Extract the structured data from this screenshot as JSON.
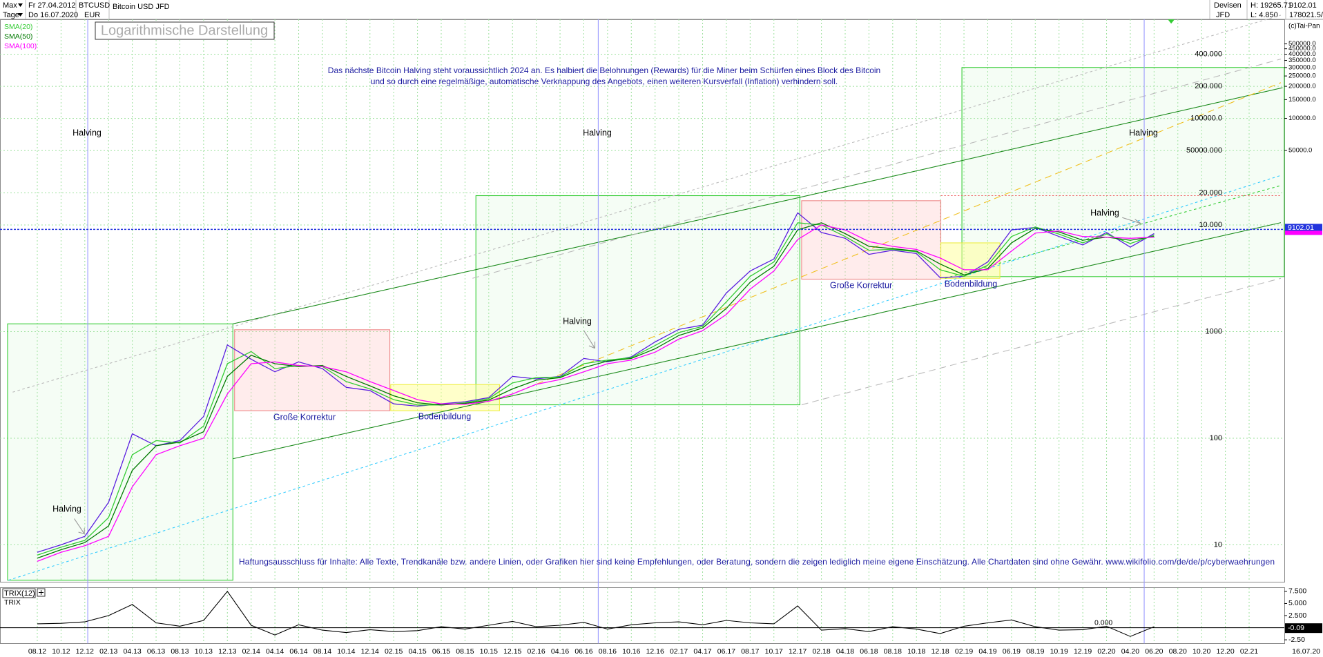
{
  "header": {
    "period": "Max",
    "from": "Fr 27.04.2012",
    "interval": "Tage",
    "to": "Do 16.07.2020",
    "symbol": "BTCUSD",
    "currency": "EUR",
    "name": "Bitcoin USD JFD",
    "market": "Devisen",
    "broker": "JFD",
    "high": "H: 19265.71",
    "low": "L: 4.850",
    "last": 9102.01,
    "extra": "178021.5/",
    "copyright": "(c)Tai-Pan"
  },
  "chart_data": [
    {
      "type": "line",
      "title": "Logarithmische Darstellung",
      "notes": [
        "Das nächste Bitcoin Halving steht voraussichtlich 2024 an. Es halbiert die Belohnungen (Rewards) für die Miner beim Schürfen eines Block des Bitcoin",
        "und so durch eine regelmäßige, automatische Verknappung des Angebots, einen weiteren Kursverfall (Inflation) verhindern soll."
      ],
      "annotations": [
        "Halving",
        "Halving",
        "Halving",
        "Halving",
        "Halving",
        "Halving",
        "Große Korrektur",
        "Große Korrektur",
        "Bodenbildung",
        "Bodenbildung"
      ],
      "disclaimer": "Haftungsausschluss für Inhalte: Alle Texte, Trendkanäle bzw. andere Linien, oder Grafiken hier sind keine Empfehlungen, oder Beratung, sondern die zeigen lediglich meine eigene Einschätzung. Alle Chartdaten sind ohne Gewähr.  www.wikifolio.com/de/de/p/cyberwaehrungen",
      "categories": [
        "08.12",
        "10.12",
        "12.12",
        "02.13",
        "04.13",
        "06.13",
        "08.13",
        "10.13",
        "12.13",
        "02.14",
        "04.14",
        "06.14",
        "08.14",
        "10.14",
        "12.14",
        "02.15",
        "04.15",
        "06.15",
        "08.15",
        "10.15",
        "12.15",
        "02.16",
        "04.16",
        "06.16",
        "08.16",
        "10.16",
        "12.16",
        "02.17",
        "04.17",
        "06.17",
        "08.17",
        "10.17",
        "12.17",
        "02.18",
        "04.18",
        "06.18",
        "08.18",
        "10.18",
        "12.18",
        "02.19",
        "04.19",
        "06.19",
        "08.19",
        "10.19",
        "12.19",
        "02.20",
        "04.20",
        "06.20",
        "08.20",
        "10.20",
        "12.20",
        "02.21"
      ],
      "x_end_label": "16.07.20",
      "series": [
        {
          "color": "#5a1ee0",
          "values": [
            8.5,
            10,
            12,
            25,
            110,
            85,
            95,
            160,
            750,
            550,
            420,
            520,
            450,
            300,
            280,
            210,
            200,
            210,
            220,
            240,
            380,
            360,
            380,
            560,
            520,
            580,
            800,
            1050,
            1150,
            2300,
            3700,
            4800,
            13000,
            8500,
            7500,
            5300,
            5800,
            5400,
            3200,
            3300,
            4500,
            9000,
            9500,
            7800,
            6500,
            8500,
            6200,
            8300,
            null,
            null,
            null,
            null
          ]
        },
        {
          "name": "SMA(20)",
          "color": "#33cc33",
          "values": [
            8,
            9.5,
            11,
            18,
            70,
            95,
            90,
            130,
            500,
            650,
            450,
            480,
            470,
            340,
            290,
            230,
            205,
            205,
            215,
            235,
            330,
            370,
            375,
            500,
            540,
            570,
            740,
            980,
            1120,
            1900,
            3300,
            4500,
            10500,
            10000,
            7800,
            5800,
            5900,
            5600,
            3800,
            3300,
            4200,
            7800,
            9600,
            8200,
            6800,
            8200,
            6700,
            8000,
            null,
            null,
            null,
            null
          ]
        },
        {
          "name": "SMA(50)",
          "color": "#007a00",
          "values": [
            7.5,
            9,
            10.5,
            15,
            50,
            85,
            92,
            115,
            380,
            600,
            500,
            470,
            480,
            380,
            310,
            250,
            215,
            205,
            212,
            228,
            290,
            350,
            370,
            460,
            530,
            560,
            690,
            920,
            1080,
            1650,
            2900,
            4100,
            9000,
            10500,
            8300,
            6300,
            6000,
            5700,
            4300,
            3400,
            3900,
            6800,
            9300,
            8600,
            7200,
            7700,
            7200,
            7800,
            null,
            null,
            null,
            null
          ]
        },
        {
          "name": "SMA(100)",
          "color": "#ff00ff",
          "values": [
            7,
            8.5,
            9.8,
            12,
            35,
            70,
            85,
            100,
            260,
            500,
            520,
            480,
            470,
            420,
            340,
            280,
            230,
            210,
            208,
            222,
            260,
            320,
            355,
            420,
            500,
            540,
            640,
            850,
            1020,
            1450,
            2500,
            3700,
            7300,
            10000,
            9000,
            7000,
            6300,
            5900,
            4900,
            3800,
            3800,
            5700,
            8400,
            8800,
            7800,
            7700,
            7500,
            7700,
            null,
            null,
            null,
            null
          ]
        }
      ],
      "log_scale": true,
      "grid": true,
      "ylim": [
        4.5,
        850000
      ],
      "yticks": [
        10,
        100,
        1000,
        {
          "value": 10000,
          "label": "10.000"
        },
        {
          "value": 20000,
          "label": "20.000"
        },
        {
          "value": 50000,
          "label": "50000.000"
        },
        {
          "value": 100000,
          "label": "100000.0"
        },
        {
          "value": 200000,
          "label": "200.000"
        },
        {
          "value": 400000,
          "label": "400.000"
        }
      ],
      "y2lim": [
        4.5,
        850000
      ],
      "y2ticks": [
        {
          "value": 50000,
          "label": "50000.0"
        },
        {
          "value": 100000,
          "label": "100000.0"
        },
        {
          "value": 150000,
          "label": "150000.0"
        },
        {
          "value": 200000,
          "label": "200000.0"
        },
        {
          "value": 250000,
          "label": "250000.0"
        },
        {
          "value": 300000,
          "label": "300000.0"
        },
        {
          "value": 350000,
          "label": "350000.0"
        },
        {
          "value": 400000,
          "label": "400000.0"
        },
        {
          "value": 450000,
          "label": "450000.0"
        },
        {
          "value": 500000,
          "label": "500000.0"
        }
      ],
      "last_value": 9102.01,
      "last_color": "#ff00ff"
    },
    {
      "type": "line",
      "indicator": "TRIX(12)",
      "series": [
        {
          "name": "TRIX",
          "color": "#000000",
          "values": [
            0.8,
            0.9,
            1.2,
            2.5,
            4.8,
            1.0,
            0.3,
            1.5,
            7.5,
            0.5,
            -1.5,
            0.6,
            -0.5,
            -1.0,
            -0.4,
            -0.8,
            -0.6,
            0.2,
            -0.3,
            0.5,
            1.3,
            0.2,
            0.5,
            1.1,
            -0.3,
            0.6,
            1.0,
            1.2,
            0.6,
            1.5,
            1.0,
            0.8,
            4.5,
            -0.5,
            -0.2,
            -0.8,
            0.2,
            -0.3,
            -1.2,
            0.3,
            1.0,
            1.6,
            0.2,
            -0.5,
            -0.4,
            0.3,
            -1.8,
            0.2,
            null,
            null,
            null,
            null
          ]
        }
      ],
      "ylim": [
        -3.2,
        8.2
      ],
      "yticks": [
        {
          "value": 7.5,
          "label": "7.500"
        },
        {
          "value": 5,
          "label": "5.000"
        },
        {
          "value": 2.5,
          "label": "2.500"
        },
        {
          "value": -2.5,
          "label": "-2.50"
        }
      ],
      "zero_line": {
        "value": 0,
        "label": "0.000"
      },
      "last_value": {
        "value": -0.09,
        "label": "-0.09"
      }
    }
  ]
}
